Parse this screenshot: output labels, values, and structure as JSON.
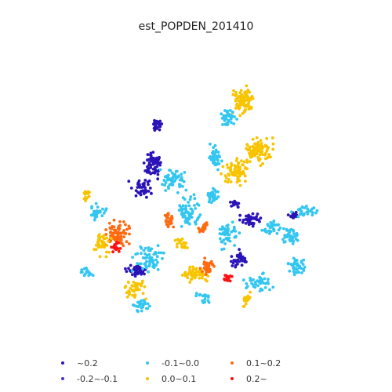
{
  "title": "est_POPDEN_201410",
  "legend": [
    {
      "label": "~0.2",
      "color": "#2a14b8"
    },
    {
      "label": "-0.2~-0.1",
      "color": "#4a2ee8"
    },
    {
      "label": "-0.1~0.0",
      "color": "#33c6f0"
    },
    {
      "label": "0.0~0.1",
      "color": "#f8c400"
    },
    {
      "label": "0.1~0.2",
      "color": "#ff6a10"
    },
    {
      "label": "0.2~",
      "color": "#ff1010"
    }
  ]
}
